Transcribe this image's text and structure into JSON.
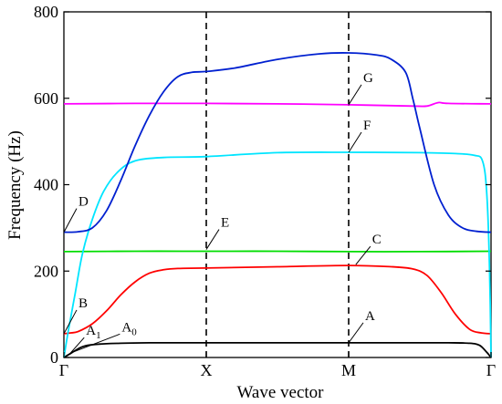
{
  "chart_data": {
    "type": "line",
    "title": "",
    "xlabel": "Wave vector",
    "ylabel": "Frequency (Hz)",
    "ylim": [
      0,
      800
    ],
    "yticks": [
      0,
      200,
      400,
      600,
      800
    ],
    "x_ticks": [
      "Γ",
      "X",
      "M",
      "Γ"
    ],
    "x_tick_positions": [
      0,
      1,
      2,
      3
    ],
    "dashed_lines_at": [
      1,
      2
    ],
    "grid": false,
    "legend": "none",
    "series": [
      {
        "color": "#000000",
        "x": [
          0,
          0.05,
          0.1,
          0.15,
          0.25,
          0.4,
          0.6,
          1.0,
          1.5,
          2.0,
          2.5,
          2.7,
          2.85,
          2.92,
          2.97,
          3.0
        ],
        "y": [
          0,
          10,
          20,
          27,
          31,
          33,
          34,
          34,
          34,
          34,
          34,
          34,
          33,
          28,
          12,
          0
        ]
      },
      {
        "color": "#ff0000",
        "x": [
          0,
          0.05,
          0.1,
          0.2,
          0.3,
          0.4,
          0.5,
          0.6,
          0.7,
          0.8,
          1.0,
          1.5,
          2.0,
          2.3,
          2.45,
          2.55,
          2.65,
          2.75,
          2.85,
          2.93,
          3.0
        ],
        "y": [
          55,
          57,
          60,
          78,
          108,
          145,
          175,
          195,
          203,
          206,
          207,
          210,
          213,
          210,
          205,
          190,
          150,
          100,
          65,
          57,
          55
        ]
      },
      {
        "color": "#00dd00",
        "x": [
          0,
          0.5,
          1.0,
          1.5,
          2.0,
          2.5,
          3.0
        ],
        "y": [
          245,
          246,
          246,
          246,
          245,
          245,
          246
        ]
      },
      {
        "color": "#ff00ff",
        "x": [
          0,
          0.5,
          1.0,
          1.5,
          2.0,
          2.45,
          2.55,
          2.63,
          2.7,
          3.0
        ],
        "y": [
          587,
          588,
          588,
          587,
          585,
          582,
          582,
          590,
          588,
          587
        ]
      },
      {
        "color": "#00e5ff",
        "x": [
          0,
          0.03,
          0.08,
          0.13,
          0.2,
          0.28,
          0.38,
          0.5,
          0.7,
          1.0,
          1.5,
          2.0,
          2.5,
          2.75,
          2.88,
          2.94,
          2.97,
          2.99,
          3.0
        ],
        "y": [
          0,
          60,
          150,
          240,
          320,
          385,
          430,
          455,
          463,
          465,
          474,
          475,
          474,
          472,
          468,
          455,
          380,
          200,
          0
        ]
      },
      {
        "color": "#0020d0",
        "x": [
          0,
          0.1,
          0.2,
          0.3,
          0.4,
          0.5,
          0.6,
          0.7,
          0.8,
          0.9,
          1.0,
          1.2,
          1.5,
          1.8,
          2.0,
          2.2,
          2.3,
          2.4,
          2.45,
          2.5,
          2.6,
          2.7,
          2.8,
          2.9,
          3.0
        ],
        "y": [
          290,
          291,
          300,
          340,
          410,
          490,
          560,
          615,
          650,
          660,
          662,
          670,
          690,
          703,
          705,
          700,
          690,
          660,
          600,
          530,
          400,
          330,
          300,
          292,
          290
        ]
      }
    ],
    "annotations": [
      {
        "text": "G",
        "at": [
          2.0,
          585
        ]
      },
      {
        "text": "F",
        "at": [
          2.0,
          475
        ]
      },
      {
        "text": "E",
        "at": [
          1.0,
          250
        ]
      },
      {
        "text": "D",
        "at": [
          0.0,
          290
        ]
      },
      {
        "text": "C",
        "at": [
          2.05,
          215
        ]
      },
      {
        "text": "B",
        "at": [
          0.0,
          55
        ]
      },
      {
        "text": "A",
        "sub": "1",
        "at": [
          0.04,
          8
        ]
      },
      {
        "text": "A",
        "sub": "0",
        "at": [
          0.06,
          12
        ]
      },
      {
        "text": "A",
        "at": [
          2.0,
          34
        ]
      }
    ]
  }
}
